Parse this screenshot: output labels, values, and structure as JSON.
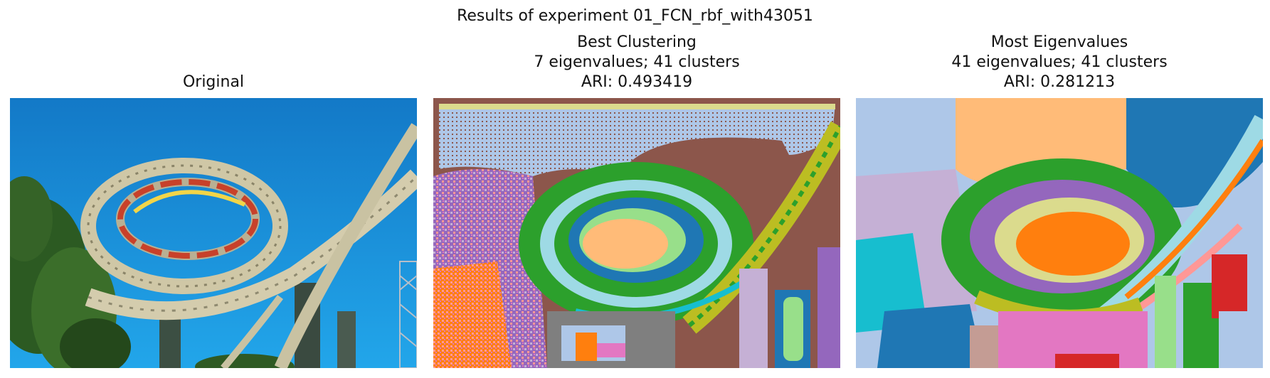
{
  "figure": {
    "suptitle": "Results of experiment 01_FCN_rbf_with43051"
  },
  "panels": [
    {
      "title_lines": [
        "Original"
      ]
    },
    {
      "title_lines": [
        "Best Clustering",
        "7 eigenvalues; 41 clusters",
        "ARI: 0.493419"
      ]
    },
    {
      "title_lines": [
        "Most Eigenvalues",
        "41 eigenvalues; 41 clusters",
        "ARI: 0.281213"
      ]
    }
  ],
  "colors": {
    "sky": "#1e9be0",
    "tab_blue": "#1f77b4",
    "tab_orange": "#ff7f0e",
    "tab_green": "#2ca02c",
    "tab_red": "#d62728",
    "tab_purple": "#9467bd",
    "tab_brown": "#8c564b",
    "tab_pink": "#e377c2",
    "tab_gray": "#7f7f7f",
    "tab_olive": "#bcbd22",
    "tab_cyan": "#17becf",
    "light_blue": "#aec7e8",
    "light_orange": "#ffbb78",
    "light_green": "#98df8a",
    "light_pink": "#ff9896",
    "light_purple": "#c5b0d5",
    "light_olive": "#dbdb8d",
    "light_cyan": "#9edae5"
  }
}
